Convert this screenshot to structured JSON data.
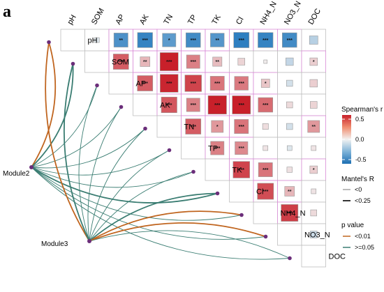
{
  "panel_label": "a",
  "colors": {
    "neg_strong": "#2e7fc0",
    "neutral": "#f2f2f2",
    "pos_strong": "#c8202a",
    "p_lt_001": "#c0651f",
    "p_ge_005": "#3a7d72",
    "node": "#6b2e7a",
    "cell_border": "#bfbfbf",
    "sig_border": "#d98ad6"
  },
  "modules": [
    {
      "name": "Module2"
    },
    {
      "name": "Module3"
    }
  ],
  "chart_data": {
    "type": "heatmap",
    "title": "",
    "variables": [
      "pH",
      "SOM",
      "AP",
      "AK",
      "TN",
      "TP",
      "TK",
      "Cl",
      "NH4_N",
      "NO3_N",
      "DOC"
    ],
    "color_scale": {
      "min": -0.5,
      "max": 0.5
    },
    "cells": [
      {
        "row": "pH",
        "col": "SOM",
        "r": -0.05,
        "sig": ""
      },
      {
        "row": "pH",
        "col": "AP",
        "r": -0.42,
        "sig": "**"
      },
      {
        "row": "pH",
        "col": "AK",
        "r": -0.48,
        "sig": "***"
      },
      {
        "row": "pH",
        "col": "TN",
        "r": -0.38,
        "sig": "*"
      },
      {
        "row": "pH",
        "col": "TP",
        "r": -0.45,
        "sig": "***"
      },
      {
        "row": "pH",
        "col": "TK",
        "r": -0.4,
        "sig": "**"
      },
      {
        "row": "pH",
        "col": "Cl",
        "r": -0.5,
        "sig": "***"
      },
      {
        "row": "pH",
        "col": "NH4_N",
        "r": -0.48,
        "sig": "***"
      },
      {
        "row": "pH",
        "col": "NO3_N",
        "r": -0.45,
        "sig": "***"
      },
      {
        "row": "pH",
        "col": "DOC",
        "r": -0.15,
        "sig": ""
      },
      {
        "row": "SOM",
        "col": "AP",
        "r": 0.5,
        "sig": "***"
      },
      {
        "row": "SOM",
        "col": "AK",
        "r": 0.2,
        "sig": "**"
      },
      {
        "row": "SOM",
        "col": "TN",
        "r": 0.7,
        "sig": "***"
      },
      {
        "row": "SOM",
        "col": "TP",
        "r": 0.38,
        "sig": "***"
      },
      {
        "row": "SOM",
        "col": "TK",
        "r": 0.18,
        "sig": "**"
      },
      {
        "row": "SOM",
        "col": "Cl",
        "r": 0.1,
        "sig": ""
      },
      {
        "row": "SOM",
        "col": "NH4_N",
        "r": 0.02,
        "sig": ""
      },
      {
        "row": "SOM",
        "col": "NO3_N",
        "r": -0.12,
        "sig": ""
      },
      {
        "row": "SOM",
        "col": "DOC",
        "r": 0.12,
        "sig": "*"
      },
      {
        "row": "AP",
        "col": "AK",
        "r": 0.5,
        "sig": "***"
      },
      {
        "row": "AP",
        "col": "TN",
        "r": 0.68,
        "sig": "***"
      },
      {
        "row": "AP",
        "col": "TP",
        "r": 0.58,
        "sig": "***"
      },
      {
        "row": "AP",
        "col": "TK",
        "r": 0.42,
        "sig": "***"
      },
      {
        "row": "AP",
        "col": "Cl",
        "r": 0.4,
        "sig": "***"
      },
      {
        "row": "AP",
        "col": "NH4_N",
        "r": 0.15,
        "sig": "*"
      },
      {
        "row": "AP",
        "col": "NO3_N",
        "r": -0.08,
        "sig": ""
      },
      {
        "row": "AP",
        "col": "DOC",
        "r": 0.12,
        "sig": ""
      },
      {
        "row": "AK",
        "col": "TN",
        "r": 0.52,
        "sig": "***"
      },
      {
        "row": "AK",
        "col": "TP",
        "r": 0.38,
        "sig": "***"
      },
      {
        "row": "AK",
        "col": "TK",
        "r": 0.72,
        "sig": "***"
      },
      {
        "row": "AK",
        "col": "Cl",
        "r": 0.7,
        "sig": "***"
      },
      {
        "row": "AK",
        "col": "NH4_N",
        "r": 0.45,
        "sig": "***"
      },
      {
        "row": "AK",
        "col": "NO3_N",
        "r": 0.08,
        "sig": ""
      },
      {
        "row": "AK",
        "col": "DOC",
        "r": 0.1,
        "sig": ""
      },
      {
        "row": "TN",
        "col": "TP",
        "r": 0.5,
        "sig": "***"
      },
      {
        "row": "TN",
        "col": "TK",
        "r": 0.3,
        "sig": "*"
      },
      {
        "row": "TN",
        "col": "Cl",
        "r": 0.42,
        "sig": "***"
      },
      {
        "row": "TN",
        "col": "NH4_N",
        "r": 0.07,
        "sig": ""
      },
      {
        "row": "TN",
        "col": "NO3_N",
        "r": -0.08,
        "sig": ""
      },
      {
        "row": "TN",
        "col": "DOC",
        "r": 0.3,
        "sig": "**"
      },
      {
        "row": "TP",
        "col": "TK",
        "r": 0.38,
        "sig": "***"
      },
      {
        "row": "TP",
        "col": "Cl",
        "r": 0.35,
        "sig": "***"
      },
      {
        "row": "TP",
        "col": "NH4_N",
        "r": 0.05,
        "sig": ""
      },
      {
        "row": "TP",
        "col": "NO3_N",
        "r": -0.05,
        "sig": ""
      },
      {
        "row": "TP",
        "col": "DOC",
        "r": 0.05,
        "sig": ""
      },
      {
        "row": "TK",
        "col": "Cl",
        "r": 0.58,
        "sig": "***"
      },
      {
        "row": "TK",
        "col": "NH4_N",
        "r": 0.42,
        "sig": "***"
      },
      {
        "row": "TK",
        "col": "NO3_N",
        "r": 0.06,
        "sig": ""
      },
      {
        "row": "TK",
        "col": "DOC",
        "r": 0.12,
        "sig": "*"
      },
      {
        "row": "Cl",
        "col": "NH4_N",
        "r": 0.55,
        "sig": "***"
      },
      {
        "row": "Cl",
        "col": "NO3_N",
        "r": 0.2,
        "sig": "**"
      },
      {
        "row": "Cl",
        "col": "DOC",
        "r": 0.05,
        "sig": ""
      },
      {
        "row": "NH4_N",
        "col": "NO3_N",
        "r": 0.6,
        "sig": "***"
      },
      {
        "row": "NH4_N",
        "col": "DOC",
        "r": 0.08,
        "sig": ""
      },
      {
        "row": "NO3_N",
        "col": "DOC",
        "r": -0.1,
        "sig": ""
      }
    ],
    "mantel_links": [
      {
        "module": "Module2",
        "target": "pH",
        "p": "<0.01",
        "r": ">=0.25"
      },
      {
        "module": "Module2",
        "target": "SOM",
        "p": ">=0.05",
        "r": ">=0.25"
      },
      {
        "module": "Module2",
        "target": "AP",
        "p": ">=0.05",
        "r": "<0.25"
      },
      {
        "module": "Module2",
        "target": "AK",
        "p": ">=0.05",
        "r": "<0.25"
      },
      {
        "module": "Module2",
        "target": "TN",
        "p": ">=0.05",
        "r": "<0.25"
      },
      {
        "module": "Module2",
        "target": "TP",
        "p": ">=0.05",
        "r": "<0.25"
      },
      {
        "module": "Module2",
        "target": "TK",
        "p": ">=0.05",
        "r": "<0.25"
      },
      {
        "module": "Module2",
        "target": "Cl",
        "p": ">=0.05",
        "r": ">=0.25"
      },
      {
        "module": "Module2",
        "target": "NH4_N",
        "p": ">=0.05",
        "r": "<0.25"
      },
      {
        "module": "Module2",
        "target": "NO3_N",
        "p": ">=0.05",
        "r": "<0.25"
      },
      {
        "module": "Module2",
        "target": "DOC",
        "p": ">=0.05",
        "r": "<0.25"
      },
      {
        "module": "Module3",
        "target": "pH",
        "p": "<0.01",
        "r": ">=0.25"
      },
      {
        "module": "Module3",
        "target": "SOM",
        "p": ">=0.05",
        "r": ">=0.25"
      },
      {
        "module": "Module3",
        "target": "AP",
        "p": ">=0.05",
        "r": "<0.25"
      },
      {
        "module": "Module3",
        "target": "AK",
        "p": ">=0.05",
        "r": "<0.25"
      },
      {
        "module": "Module3",
        "target": "TN",
        "p": ">=0.05",
        "r": "<0.25"
      },
      {
        "module": "Module3",
        "target": "TP",
        "p": ">=0.05",
        "r": "<0.25"
      },
      {
        "module": "Module3",
        "target": "TK",
        "p": ">=0.05",
        "r": "<0.25"
      },
      {
        "module": "Module3",
        "target": "Cl",
        "p": ">=0.05",
        "r": ">=0.25"
      },
      {
        "module": "Module3",
        "target": "NH4_N",
        "p": "<0.01",
        "r": ">=0.25"
      },
      {
        "module": "Module3",
        "target": "NO3_N",
        "p": "<0.01",
        "r": ">=0.25"
      },
      {
        "module": "Module3",
        "target": "DOC",
        "p": ">=0.05",
        "r": "<0.25"
      }
    ],
    "legends": {
      "spearman": {
        "title": "Spearman's r",
        "ticks": [
          "0.5",
          "0.0",
          "-0.5"
        ],
        "values": [
          0.5,
          0.0,
          -0.5
        ]
      },
      "mantel_r": {
        "title": "Mantel's R",
        "items": [
          "<0",
          "<0.25"
        ]
      },
      "p_value": {
        "title": "p value",
        "items": [
          "<0.01",
          ">=0.05"
        ]
      }
    }
  }
}
